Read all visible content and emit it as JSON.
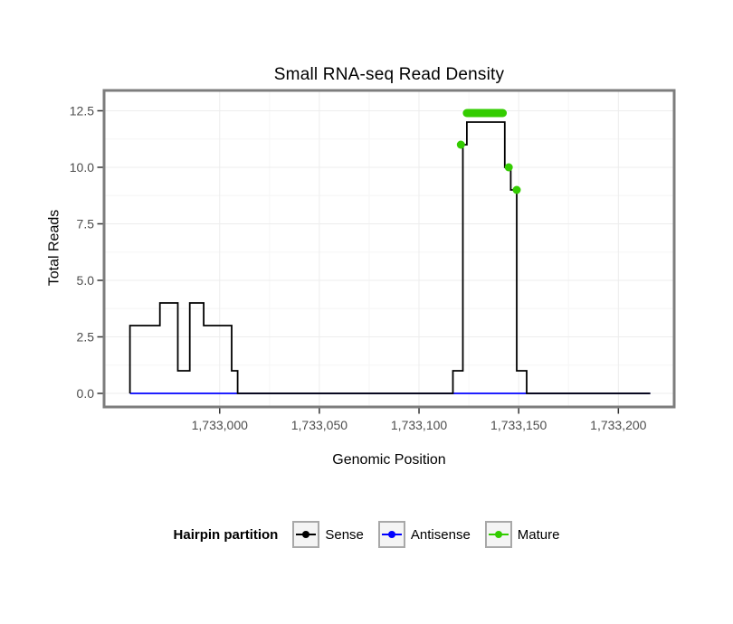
{
  "page": {
    "background": "#ffffff"
  },
  "chart_data": {
    "type": "line",
    "title": "Small RNA-seq Read Density",
    "xlabel": "Genomic Position",
    "ylabel": "Total Reads",
    "xlim": [
      1732942,
      1733228
    ],
    "ylim": [
      -0.6,
      13.4
    ],
    "grid": "major+minor",
    "panel_border_color": "#7d7d7d",
    "grid_major_color": "#ededed",
    "grid_minor_color": "#f6f6f6",
    "tick_label_color": "#4d4d4d",
    "x_ticks": [
      1733000,
      1733050,
      1733100,
      1733150,
      1733200
    ],
    "x_tick_labels": [
      "1,733,000",
      "1,733,050",
      "1,733,100",
      "1,733,150",
      "1,733,200"
    ],
    "y_ticks": [
      0.0,
      2.5,
      5.0,
      7.5,
      10.0,
      12.5
    ],
    "y_tick_labels": [
      "0.0",
      "2.5",
      "5.0",
      "7.5",
      "10.0",
      "12.5"
    ],
    "legend": {
      "title": "Hairpin partition",
      "position": "bottom"
    },
    "series": [
      {
        "name": "Sense",
        "color": "#000000",
        "style": "step-line",
        "z": 1,
        "points": [
          [
            1732955,
            0
          ],
          [
            1732955,
            3
          ],
          [
            1732970,
            3
          ],
          [
            1732970,
            4
          ],
          [
            1732979,
            4
          ],
          [
            1732979,
            1
          ],
          [
            1732985,
            1
          ],
          [
            1732985,
            4
          ],
          [
            1732992,
            4
          ],
          [
            1732992,
            3
          ],
          [
            1733006,
            3
          ],
          [
            1733006,
            1
          ],
          [
            1733009,
            1
          ],
          [
            1733009,
            0
          ],
          [
            1733117,
            0
          ],
          [
            1733117,
            1
          ],
          [
            1733122,
            1
          ],
          [
            1733122,
            11
          ],
          [
            1733124,
            11
          ],
          [
            1733124,
            12
          ],
          [
            1733143,
            12
          ],
          [
            1733143,
            10
          ],
          [
            1733146,
            10
          ],
          [
            1733146,
            9
          ],
          [
            1733149,
            9
          ],
          [
            1733149,
            1
          ],
          [
            1733154,
            1
          ],
          [
            1733154,
            0
          ],
          [
            1733216,
            0
          ]
        ]
      },
      {
        "name": "Antisense",
        "color": "#0000ff",
        "style": "line",
        "z": 0,
        "points": [
          [
            1732955,
            0
          ],
          [
            1733216,
            0
          ]
        ]
      },
      {
        "name": "Mature",
        "color": "#33cc00",
        "style": "markers",
        "z": 2,
        "markers": [
          [
            1733121,
            11
          ],
          [
            1733145,
            10
          ],
          [
            1733149,
            9
          ]
        ],
        "segments": [
          [
            1733124,
            12.4,
            1733142,
            12.4
          ]
        ]
      }
    ]
  }
}
